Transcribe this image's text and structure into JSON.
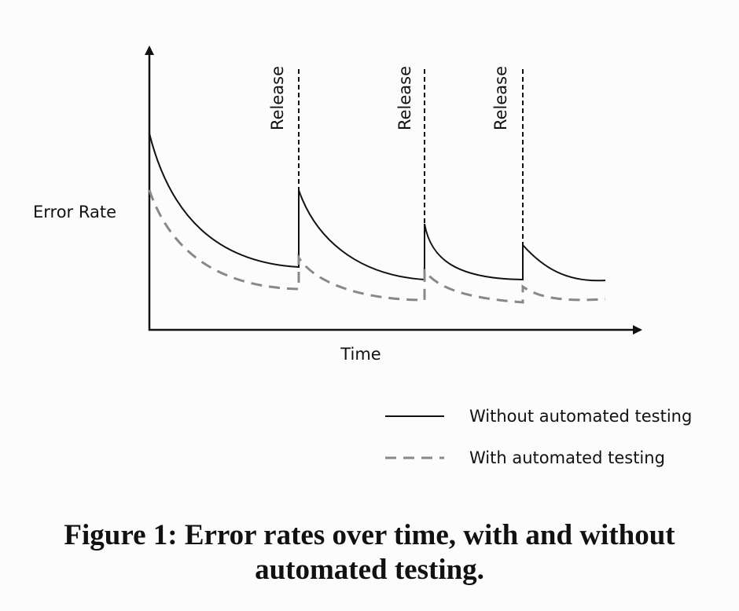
{
  "axes": {
    "y_label": "Error Rate",
    "x_label": "Time"
  },
  "releases": [
    "Release",
    "Release",
    "Release"
  ],
  "legend": [
    "Without automated testing",
    "With automated testing"
  ],
  "caption": "Figure 1: Error rates over time, with and without automated testing."
}
